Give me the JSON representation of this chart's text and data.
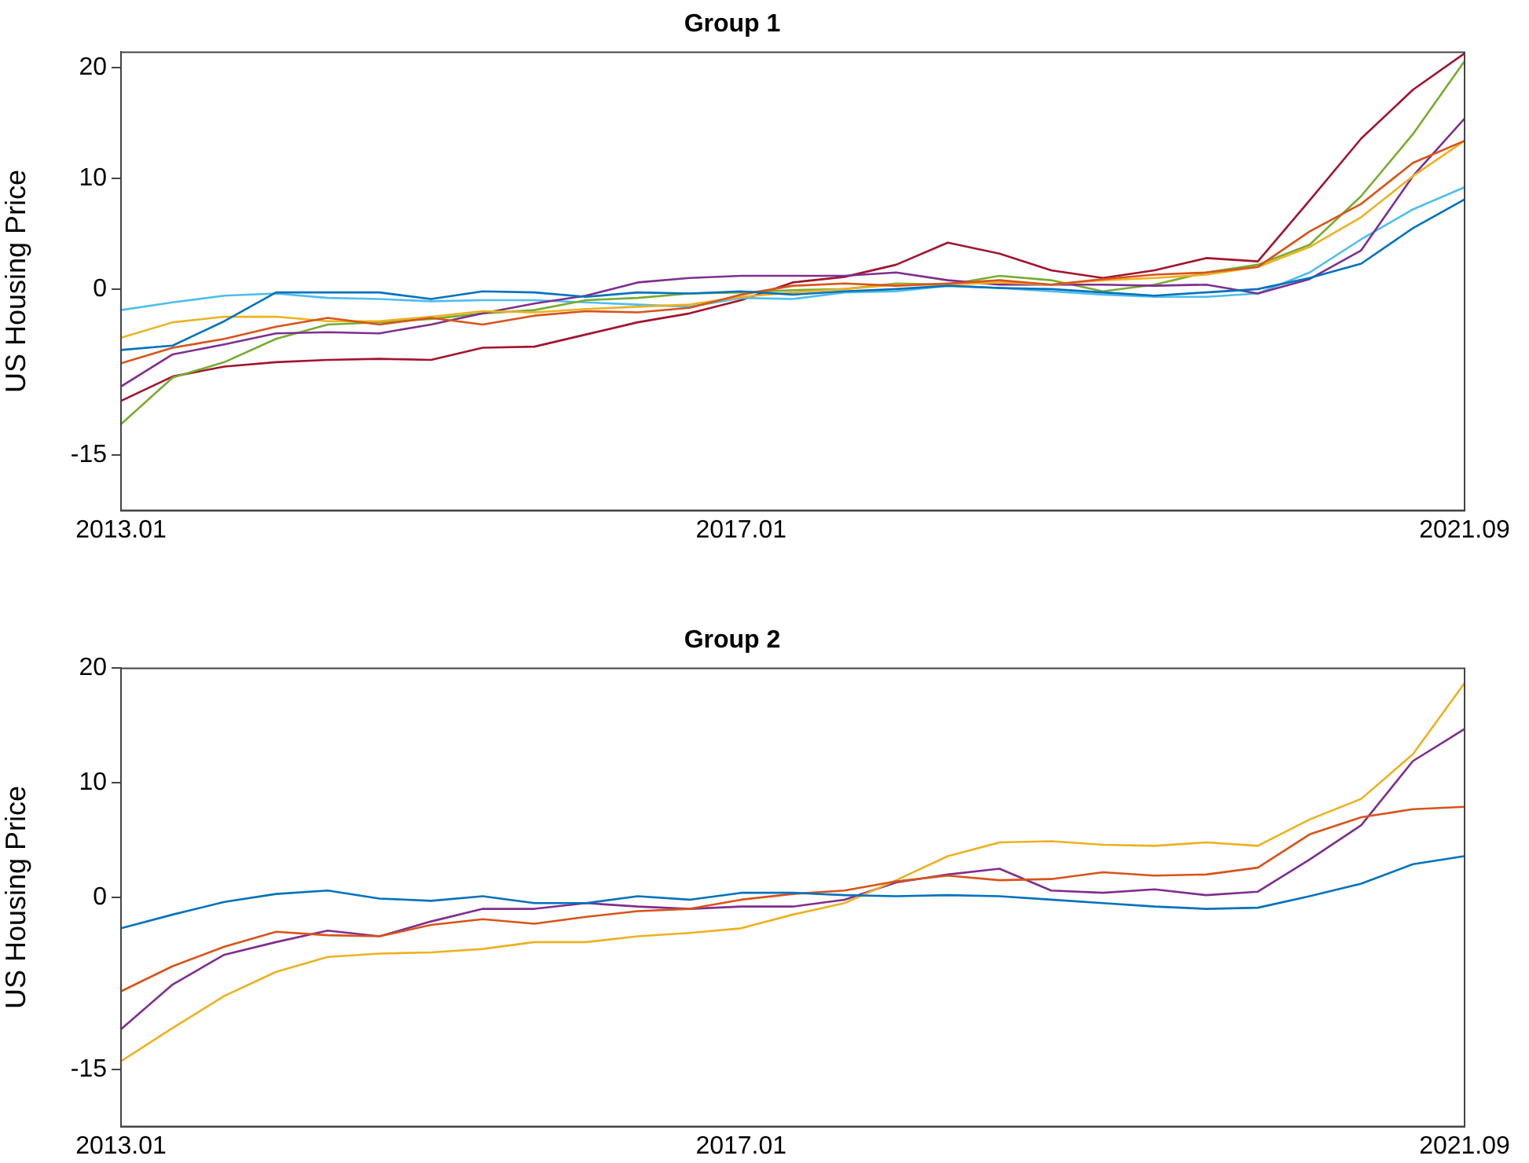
{
  "chart_data": [
    {
      "type": "line",
      "title": "Group 1",
      "ylabel": "US Housing Price",
      "x": [
        "2013-01",
        "2013-05",
        "2013-09",
        "2014-01",
        "2014-05",
        "2014-09",
        "2015-01",
        "2015-05",
        "2015-09",
        "2016-01",
        "2016-05",
        "2016-09",
        "2017-01",
        "2017-05",
        "2017-09",
        "2018-01",
        "2018-05",
        "2018-09",
        "2019-01",
        "2019-05",
        "2019-09",
        "2020-01",
        "2020-05",
        "2020-09",
        "2021-01",
        "2021-05",
        "2021-09"
      ],
      "xlim": [
        "2013-01",
        "2021-09"
      ],
      "xticks": [
        {
          "value": "2013-01",
          "label": "2013.01"
        },
        {
          "value": "2017-01",
          "label": "2017.01"
        },
        {
          "value": "2021-09",
          "label": "2021.09"
        }
      ],
      "ylim": [
        -20,
        21.4
      ],
      "yticks": [
        -15,
        0,
        10,
        20
      ],
      "grid": false,
      "legend": false,
      "marker": "none",
      "line_style": "solid",
      "series": [
        {
          "color": "#0072bd",
          "values": [
            -5.5,
            -5.1,
            -2.9,
            -0.3,
            -0.3,
            -0.3,
            -0.9,
            -0.2,
            -0.3,
            -0.7,
            -0.3,
            -0.4,
            -0.2,
            -0.5,
            -0.2,
            0,
            0.3,
            0.1,
            0,
            -0.3,
            -0.6,
            -0.3,
            0,
            1.0,
            2.3,
            5.5,
            8.1
          ]
        },
        {
          "color": "#d95319",
          "values": [
            -6.7,
            -5.3,
            -4.5,
            -3.4,
            -2.6,
            -3.2,
            -2.6,
            -3.2,
            -2.4,
            -2.0,
            -2.1,
            -1.7,
            -0.5,
            0.3,
            0.5,
            0.3,
            0.5,
            0.8,
            0.4,
            0.9,
            1.3,
            1.5,
            2.0,
            5.2,
            7.7,
            11.4,
            13.4
          ]
        },
        {
          "color": "#edb120",
          "values": [
            -4.4,
            -3.0,
            -2.5,
            -2.5,
            -2.9,
            -2.9,
            -2.5,
            -2.0,
            -2.1,
            -1.8,
            -1.6,
            -1.4,
            -0.7,
            -0.3,
            0,
            0.4,
            0.4,
            0.6,
            0.4,
            0.8,
            1.0,
            1.3,
            2.0,
            3.8,
            6.5,
            10.2,
            13.4
          ]
        },
        {
          "color": "#7e2f8e",
          "values": [
            -8.8,
            -5.9,
            -5.0,
            -4.0,
            -3.9,
            -4.0,
            -3.2,
            -2.2,
            -1.3,
            -0.6,
            0.6,
            1.0,
            1.2,
            1.2,
            1.2,
            1.5,
            0.8,
            0.4,
            0.4,
            0.4,
            0.3,
            0.4,
            -0.4,
            0.9,
            3.5,
            10.2,
            15.4
          ]
        },
        {
          "color": "#77ac30",
          "values": [
            -12.2,
            -8.0,
            -6.6,
            -4.5,
            -3.2,
            -3.0,
            -2.7,
            -2.2,
            -1.9,
            -1.0,
            -0.8,
            -0.4,
            -0.3,
            -0.1,
            0,
            0.5,
            0.4,
            1.2,
            0.8,
            -0.2,
            0.4,
            1.5,
            2.2,
            4.0,
            8.4,
            14.0,
            20.6
          ]
        },
        {
          "color": "#4dbeee",
          "values": [
            -1.9,
            -1.2,
            -0.6,
            -0.4,
            -0.8,
            -0.9,
            -1.1,
            -1.0,
            -1.0,
            -1.2,
            -1.4,
            -1.6,
            -0.8,
            -0.9,
            -0.3,
            -0.2,
            0.3,
            0.1,
            -0.2,
            -0.5,
            -0.7,
            -0.7,
            -0.4,
            1.5,
            4.5,
            7.2,
            9.2
          ]
        },
        {
          "color": "#a2142f",
          "values": [
            -10.1,
            -7.9,
            -7.0,
            -6.6,
            -6.4,
            -6.3,
            -6.4,
            -5.3,
            -5.2,
            -4.1,
            -3.0,
            -2.2,
            -1.0,
            0.6,
            1.1,
            2.2,
            4.2,
            3.2,
            1.7,
            1.0,
            1.7,
            2.8,
            2.5,
            8.0,
            13.6,
            18.0,
            21.3
          ]
        }
      ]
    },
    {
      "type": "line",
      "title": "Group 2",
      "ylabel": "US Housing Price",
      "x": [
        "2013-01",
        "2013-05",
        "2013-09",
        "2014-01",
        "2014-05",
        "2014-09",
        "2015-01",
        "2015-05",
        "2015-09",
        "2016-01",
        "2016-05",
        "2016-09",
        "2017-01",
        "2017-05",
        "2017-09",
        "2018-01",
        "2018-05",
        "2018-09",
        "2019-01",
        "2019-05",
        "2019-09",
        "2020-01",
        "2020-05",
        "2020-09",
        "2021-01",
        "2021-05",
        "2021-09"
      ],
      "xlim": [
        "2013-01",
        "2021-09"
      ],
      "xticks": [
        {
          "value": "2013-01",
          "label": "2013.01"
        },
        {
          "value": "2017-01",
          "label": "2017.01"
        },
        {
          "value": "2021-09",
          "label": "2021.09"
        }
      ],
      "ylim": [
        -20,
        20
      ],
      "yticks": [
        -15,
        0,
        10,
        20
      ],
      "grid": false,
      "legend": false,
      "marker": "none",
      "line_style": "solid",
      "series": [
        {
          "color": "#0072bd",
          "values": [
            -2.7,
            -1.5,
            -0.4,
            0.3,
            0.6,
            -0.1,
            -0.3,
            0.1,
            -0.5,
            -0.5,
            0.1,
            -0.2,
            0.4,
            0.4,
            0.2,
            0.1,
            0.2,
            0.1,
            -0.2,
            -0.5,
            -0.8,
            -1.0,
            -0.9,
            0.1,
            1.2,
            2.9,
            3.6
          ]
        },
        {
          "color": "#d95319",
          "values": [
            -8.2,
            -6.0,
            -4.3,
            -3.0,
            -3.3,
            -3.4,
            -2.4,
            -1.9,
            -2.3,
            -1.7,
            -1.2,
            -1.0,
            -0.2,
            0.3,
            0.6,
            1.4,
            1.9,
            1.5,
            1.6,
            2.2,
            1.9,
            2.0,
            2.6,
            5.5,
            7.0,
            7.7,
            7.9
          ]
        },
        {
          "color": "#edb120",
          "values": [
            -14.3,
            -11.4,
            -8.6,
            -6.5,
            -5.2,
            -4.9,
            -4.8,
            -4.5,
            -3.9,
            -3.9,
            -3.4,
            -3.1,
            -2.7,
            -1.5,
            -0.5,
            1.5,
            3.6,
            4.8,
            4.9,
            4.6,
            4.5,
            4.8,
            4.5,
            6.8,
            8.6,
            12.5,
            18.7
          ]
        },
        {
          "color": "#7e2f8e",
          "values": [
            -11.5,
            -7.6,
            -5.0,
            -3.9,
            -2.9,
            -3.4,
            -2.1,
            -1.0,
            -1.0,
            -0.5,
            -0.8,
            -1.0,
            -0.8,
            -0.8,
            -0.2,
            1.3,
            2.0,
            2.5,
            0.6,
            0.4,
            0.7,
            0.2,
            0.5,
            3.3,
            6.3,
            11.9,
            14.7
          ]
        }
      ]
    }
  ]
}
